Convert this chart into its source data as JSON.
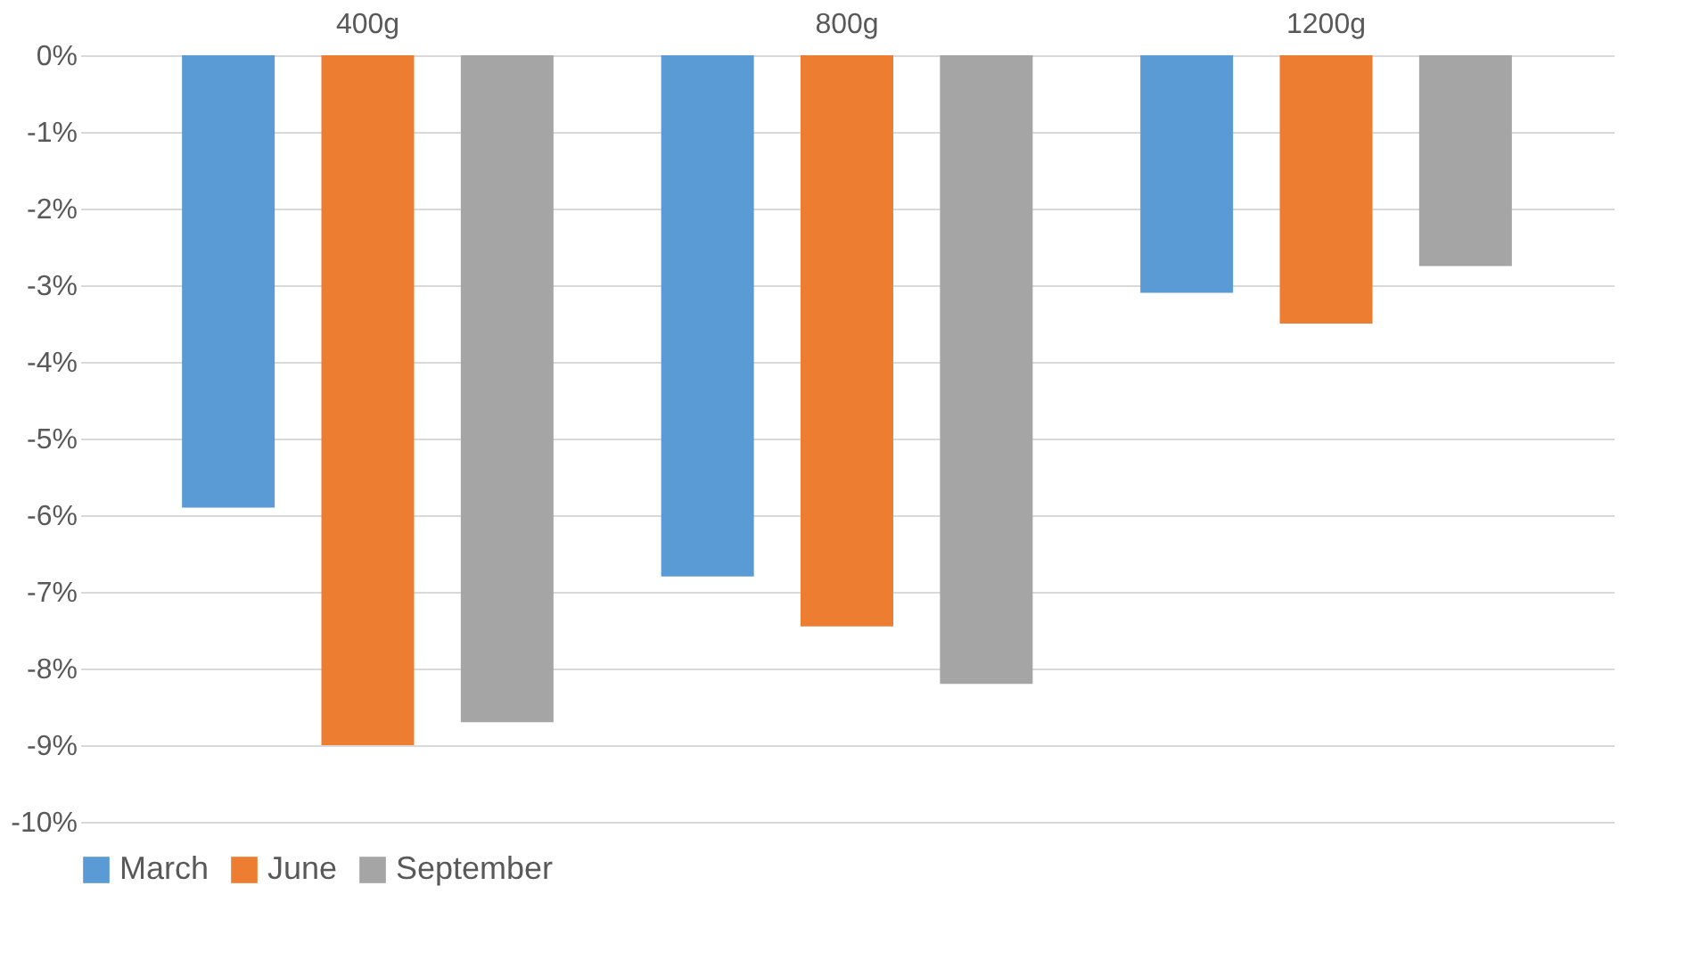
{
  "chart_data": {
    "type": "bar",
    "categories": [
      "400g",
      "800g",
      "1200g"
    ],
    "series": [
      {
        "name": "March",
        "color": "#5b9bd5",
        "values": [
          -5.9,
          -6.8,
          -3.1
        ]
      },
      {
        "name": "June",
        "color": "#ed7d31",
        "values": [
          -9.0,
          -7.45,
          -3.5
        ]
      },
      {
        "name": "September",
        "color": "#a5a5a5",
        "values": [
          -8.7,
          -8.2,
          -2.75
        ]
      }
    ],
    "ylim": [
      -10,
      0
    ],
    "yticks": [
      {
        "value": 0,
        "label": "0%"
      },
      {
        "value": -1,
        "label": "-1%"
      },
      {
        "value": -2,
        "label": "-2%"
      },
      {
        "value": -3,
        "label": "-3%"
      },
      {
        "value": -4,
        "label": "-4%"
      },
      {
        "value": -5,
        "label": "-5%"
      },
      {
        "value": -6,
        "label": "-6%"
      },
      {
        "value": -7,
        "label": "-7%"
      },
      {
        "value": -8,
        "label": "-8%"
      },
      {
        "value": -9,
        "label": "-9%"
      },
      {
        "value": -10,
        "label": "-10%"
      }
    ],
    "grid": "y",
    "legend": "bottom"
  }
}
